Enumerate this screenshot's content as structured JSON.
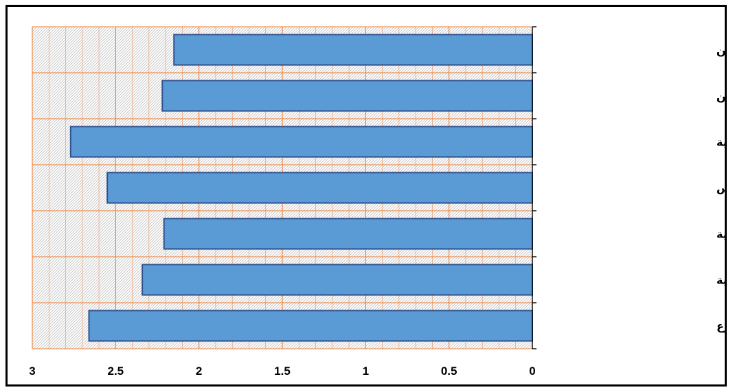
{
  "chart_data": {
    "type": "bar",
    "orientation": "horizontal",
    "x_axis_direction": "reversed",
    "categories": [
      "الغيابات المستمرة للدارسين",
      "تفاوت العمر بين الدارسين",
      "صعوبة المناهج الدراسية",
      "قصر وقت الدرس",
      "نقص في الكوادر التعليمية",
      "قلة التجهيزات المدرسية",
      "قلة عدد مدارس التعليم المسرع"
    ],
    "values": [
      2.15,
      2.22,
      2.77,
      2.55,
      2.21,
      2.34,
      2.66
    ],
    "xlim": [
      0,
      3
    ],
    "x_ticks": [
      0,
      0.5,
      1,
      1.5,
      2,
      2.5,
      3
    ],
    "x_tick_labels": [
      "0",
      "0.5",
      "1",
      "1.5",
      "2",
      "2.5",
      "3"
    ],
    "title": "",
    "xlabel": "",
    "ylabel": "",
    "grid": true,
    "legend": "none",
    "colors": {
      "bar_fill": "#5B9BD5",
      "bar_stroke": "#2F528F",
      "grid": "#ED7D31",
      "plot_pattern": "#BFBFBF",
      "axis": "#000000"
    }
  }
}
